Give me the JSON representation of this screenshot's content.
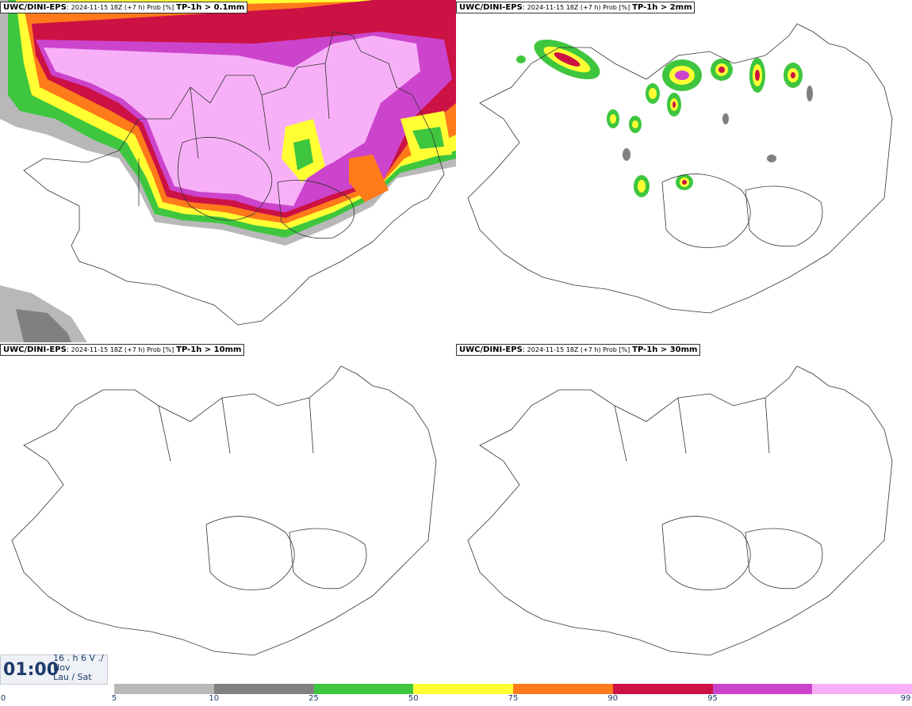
{
  "panels": [
    {
      "label": "UWC/DINI-EPS",
      "meta": "2024-11-15 18Z (+7 h) Prob [%]",
      "threshold": "TP-1h > 0.1mm"
    },
    {
      "label": "UWC/DINI-EPS",
      "meta": "2024-11-15 18Z (+7 h) Prob [%]",
      "threshold": "TP-1h > 2mm"
    },
    {
      "label": "UWC/DINI-EPS",
      "meta": "2024-11-15 18Z (+7 h) Prob [%]",
      "threshold": "TP-1h > 10mm"
    },
    {
      "label": "UWC/DINI-EPS",
      "meta": "2024-11-15 18Z (+7 h) Prob [%]",
      "threshold": "TP-1h > 30mm"
    }
  ],
  "time": {
    "clock": "01:00",
    "line1": "16 . h 6 V ./",
    "line2": "Nov",
    "line3": "Lau / Sat"
  },
  "legend": {
    "colors": [
      "#b8b8b8",
      "#808080",
      "#3ec63e",
      "#ffff33",
      "#ff7a1a",
      "#cc1144",
      "#cc44cc",
      "#f7b0f7"
    ],
    "ticks": [
      "0",
      "5",
      "10",
      "25",
      "50",
      "75",
      "90",
      "95",
      "99"
    ]
  }
}
